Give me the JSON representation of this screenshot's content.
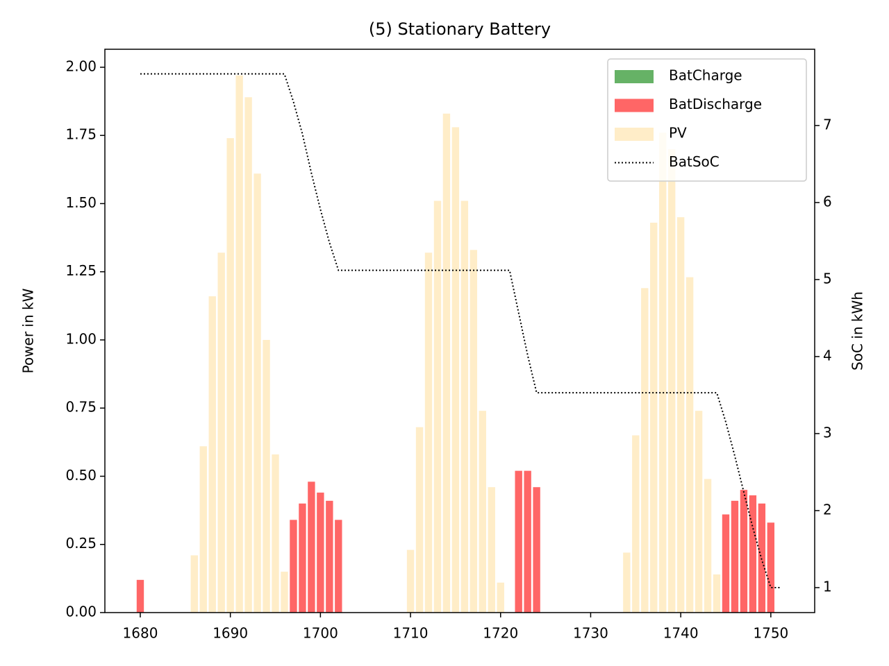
{
  "chart_data": {
    "type": "bar",
    "title": "(5) Stationary Battery",
    "ylabel": "Power in kW",
    "y2label": "SoC in kWh",
    "x": [
      1680,
      1681,
      1682,
      1683,
      1684,
      1685,
      1686,
      1687,
      1688,
      1689,
      1690,
      1691,
      1692,
      1693,
      1694,
      1695,
      1696,
      1697,
      1698,
      1699,
      1700,
      1701,
      1702,
      1703,
      1704,
      1705,
      1706,
      1707,
      1708,
      1709,
      1710,
      1711,
      1712,
      1713,
      1714,
      1715,
      1716,
      1717,
      1718,
      1719,
      1720,
      1721,
      1722,
      1723,
      1724,
      1725,
      1726,
      1727,
      1728,
      1729,
      1730,
      1731,
      1732,
      1733,
      1734,
      1735,
      1736,
      1737,
      1738,
      1739,
      1740,
      1741,
      1742,
      1743,
      1744,
      1745,
      1746,
      1747,
      1748,
      1749,
      1750,
      1751
    ],
    "series": [
      {
        "name": "BatCharge",
        "type": "bar",
        "color": "#66b266",
        "values": [
          0,
          0,
          0,
          0,
          0,
          0,
          0,
          0,
          0,
          0,
          0,
          0,
          0,
          0,
          0,
          0,
          0,
          0,
          0,
          0,
          0,
          0,
          0,
          0,
          0,
          0,
          0,
          0,
          0,
          0,
          0,
          0,
          0,
          0,
          0,
          0,
          0,
          0,
          0,
          0,
          0,
          0,
          0,
          0,
          0,
          0,
          0,
          0,
          0,
          0,
          0,
          0,
          0,
          0,
          0,
          0,
          0,
          0,
          0,
          0,
          0,
          0,
          0,
          0,
          0,
          0,
          0,
          0,
          0,
          0,
          0,
          0
        ]
      },
      {
        "name": "BatDischarge",
        "type": "bar",
        "color": "#ff6666",
        "values": [
          0.12,
          0,
          0,
          0,
          0,
          0,
          0,
          0,
          0,
          0,
          0,
          0,
          0,
          0,
          0,
          0,
          0,
          0.34,
          0.4,
          0.48,
          0.44,
          0.41,
          0.34,
          0,
          0,
          0,
          0,
          0,
          0,
          0,
          0,
          0,
          0,
          0,
          0,
          0,
          0,
          0,
          0,
          0,
          0,
          0,
          0.52,
          0.52,
          0.46,
          0,
          0,
          0,
          0,
          0,
          0,
          0,
          0,
          0,
          0,
          0,
          0,
          0,
          0,
          0,
          0,
          0,
          0,
          0,
          0,
          0.36,
          0.41,
          0.45,
          0.43,
          0.4,
          0.33,
          0
        ]
      },
      {
        "name": "PV",
        "type": "bar",
        "color": "#ffedc8",
        "values": [
          0,
          0,
          0,
          0,
          0,
          0,
          0.21,
          0.61,
          1.16,
          1.32,
          1.74,
          1.97,
          1.89,
          1.61,
          1.0,
          0.58,
          0.15,
          0,
          0,
          0,
          0,
          0,
          0,
          0,
          0,
          0,
          0,
          0,
          0,
          0,
          0.23,
          0.68,
          1.32,
          1.51,
          1.83,
          1.78,
          1.51,
          1.33,
          0.74,
          0.46,
          0.11,
          0,
          0,
          0,
          0,
          0,
          0,
          0,
          0,
          0,
          0,
          0,
          0,
          0,
          0.22,
          0.65,
          1.19,
          1.43,
          1.76,
          1.7,
          1.45,
          1.23,
          0.74,
          0.49,
          0.14,
          0,
          0,
          0,
          0,
          0,
          0,
          0
        ]
      },
      {
        "name": "BatSoC",
        "type": "line",
        "axis": "y2",
        "color": "#000000",
        "dash": "dotted",
        "values": [
          7.67,
          7.67,
          7.67,
          7.67,
          7.67,
          7.67,
          7.67,
          7.67,
          7.67,
          7.67,
          7.67,
          7.67,
          7.67,
          7.67,
          7.67,
          7.67,
          7.67,
          7.31,
          6.89,
          6.38,
          5.91,
          5.48,
          5.12,
          5.12,
          5.12,
          5.12,
          5.12,
          5.12,
          5.12,
          5.12,
          5.12,
          5.12,
          5.12,
          5.12,
          5.12,
          5.12,
          5.12,
          5.12,
          5.12,
          5.12,
          5.12,
          5.12,
          4.57,
          4.02,
          3.53,
          3.53,
          3.53,
          3.53,
          3.53,
          3.53,
          3.53,
          3.53,
          3.53,
          3.53,
          3.53,
          3.53,
          3.53,
          3.53,
          3.53,
          3.53,
          3.53,
          3.53,
          3.53,
          3.53,
          3.53,
          3.15,
          2.71,
          2.24,
          1.78,
          1.36,
          1.0,
          1.0
        ]
      }
    ],
    "xlim": [
      1676.07,
      1754.87
    ],
    "xticks": [
      1680,
      1690,
      1700,
      1710,
      1720,
      1730,
      1740,
      1750
    ],
    "ylim": [
      0,
      2.066
    ],
    "yticks": [
      {
        "value": 0,
        "label": "0.00"
      },
      {
        "value": 0.25,
        "label": "0.25"
      },
      {
        "value": 0.5,
        "label": "0.50"
      },
      {
        "value": 0.75,
        "label": "0.75"
      },
      {
        "value": 1,
        "label": "1.00"
      },
      {
        "value": 1.25,
        "label": "1.25"
      },
      {
        "value": 1.5,
        "label": "1.50"
      },
      {
        "value": 1.75,
        "label": "1.75"
      },
      {
        "value": 2,
        "label": "2.00"
      }
    ],
    "y2lim": [
      0.676,
      7.99
    ],
    "y2ticks": [
      1,
      2,
      3,
      4,
      5,
      6,
      7
    ],
    "legend": "upper right",
    "grid": false
  }
}
